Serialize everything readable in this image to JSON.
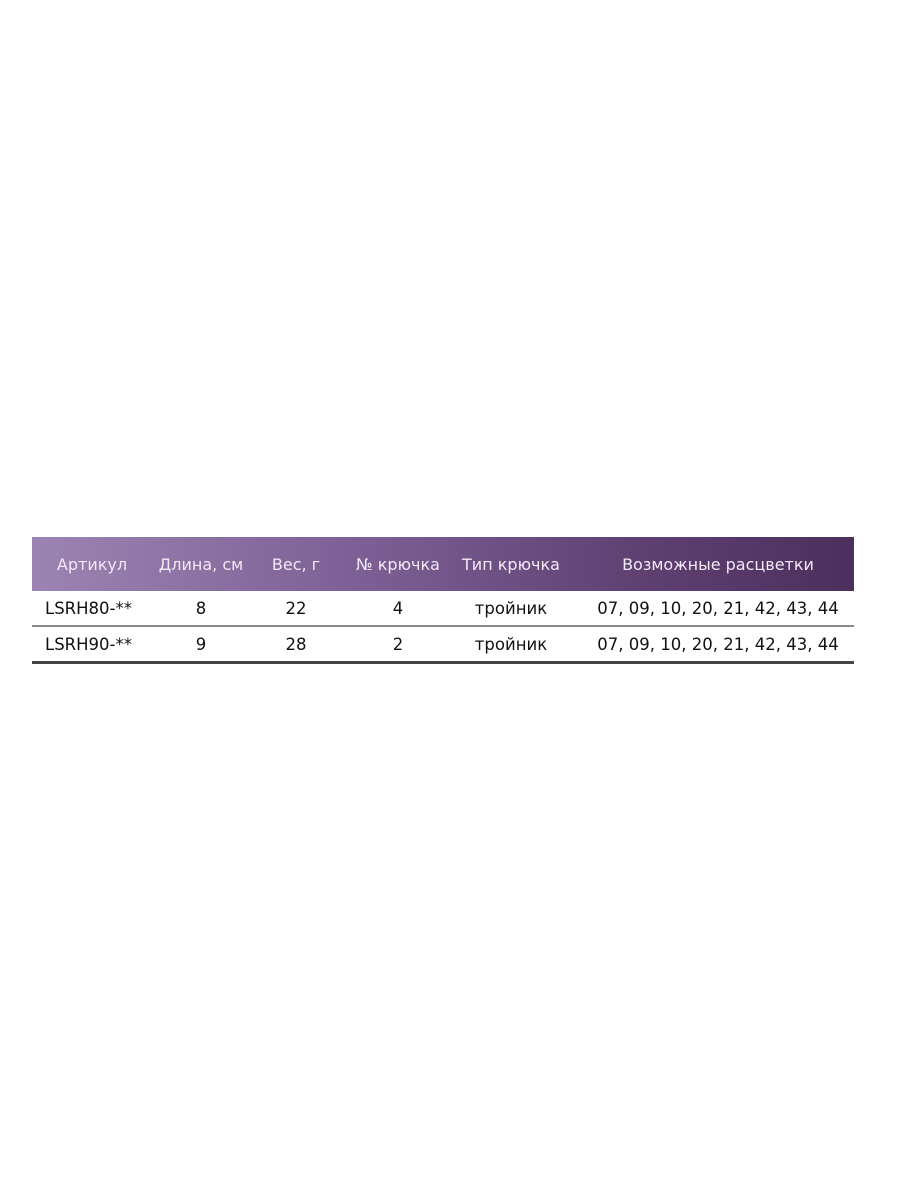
{
  "table": {
    "headers": [
      "Артикул",
      "Длина, см",
      "Вес, г",
      "№ крючка",
      "Тип крючка",
      "Возможные расцветки"
    ],
    "rows": [
      [
        "LSRH80-**",
        "8",
        "22",
        "4",
        "тройник",
        "07, 09, 10, 20, 21, 42, 43, 44"
      ],
      [
        "LSRH90-**",
        "9",
        "28",
        "2",
        "тройник",
        "07, 09, 10, 20, 21, 42, 43, 44"
      ]
    ],
    "header_colors": [
      "#9c84b1",
      "#4d2f5d"
    ]
  }
}
